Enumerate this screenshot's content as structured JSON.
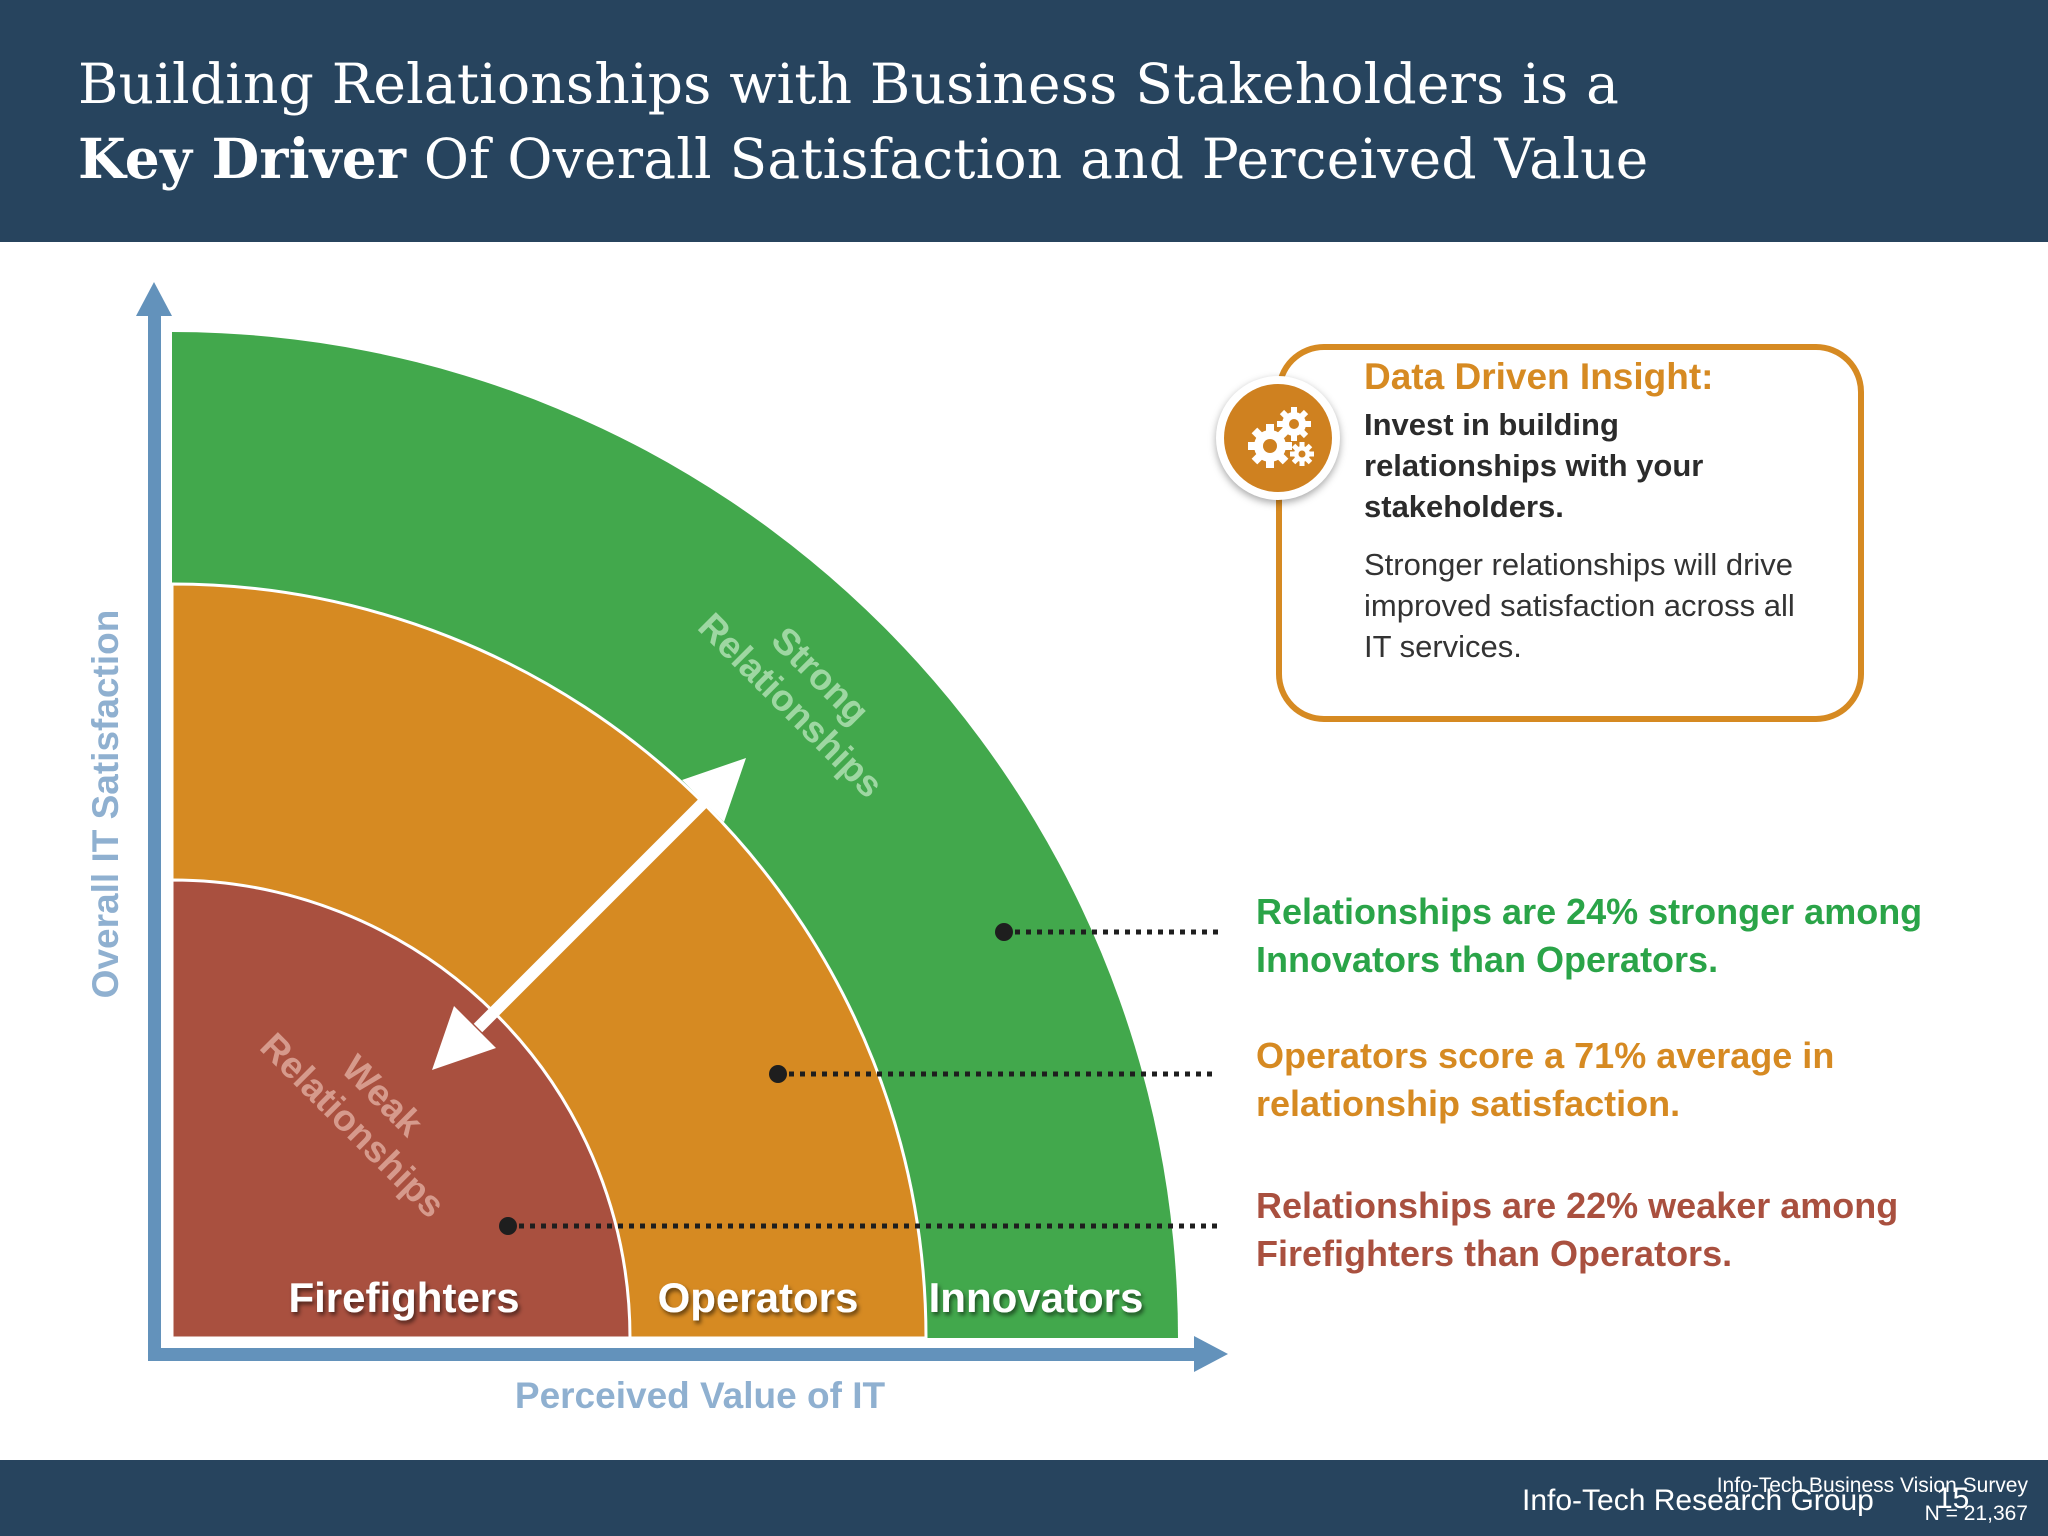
{
  "header": {
    "title_line1": "Building Relationships with Business Stakeholders is a",
    "title_line2_bold": "Key Driver",
    "title_line2_rest": " Of Overall Satisfaction and Perceived Value"
  },
  "diagram": {
    "y_axis_label": "Overall IT Satisfaction",
    "x_axis_label": "Perceived Value of IT",
    "bands": [
      {
        "label": "Firefighters",
        "color": "#a9503f"
      },
      {
        "label": "Operators",
        "color": "#d68a22"
      },
      {
        "label": "Innovators",
        "color": "#42a84c"
      }
    ],
    "arrow_top_label": [
      "Strong",
      "Relationships"
    ],
    "arrow_bottom_label": [
      "Weak",
      "Relationships"
    ]
  },
  "insight": {
    "heading": "Data Driven Insight:",
    "bold_text": "Invest in building relationships with your stakeholders.",
    "body_text": "Stronger relationships will drive improved satisfaction across all IT services.",
    "icon": "gears-icon"
  },
  "callouts": [
    {
      "text": "Relationships are 24% stronger among Innovators than Operators.",
      "color": "#2aa448"
    },
    {
      "text": "Operators score a 71% average in relationship satisfaction.",
      "color": "#d68a22"
    },
    {
      "text": "Relationships are 22% weaker among Firefighters than Operators.",
      "color": "#a9503f"
    }
  ],
  "footer": {
    "company": "Info-Tech Research Group",
    "page_number": "15",
    "source": "Info-Tech Business Vision Survey",
    "sample": "N = 21,367"
  }
}
